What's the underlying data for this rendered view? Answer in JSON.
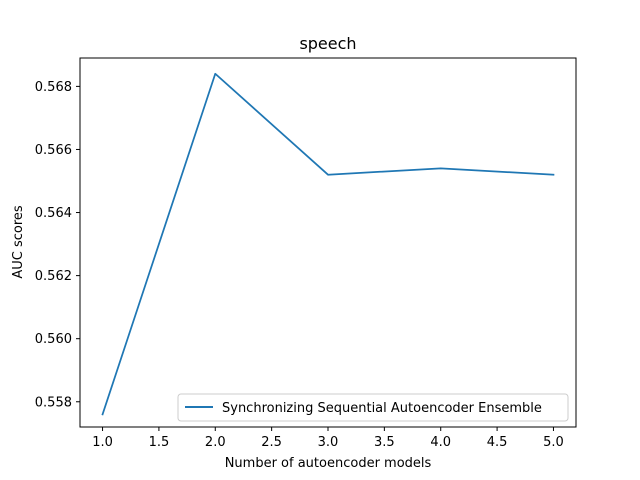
{
  "chart_data": {
    "type": "line",
    "title": "speech",
    "xlabel": "Number of autoencoder models",
    "ylabel": "AUC scores",
    "xlim": [
      0.8,
      5.2
    ],
    "ylim": [
      0.5572,
      0.5689
    ],
    "x_ticks": [
      1.0,
      1.5,
      2.0,
      2.5,
      3.0,
      3.5,
      4.0,
      4.5,
      5.0
    ],
    "x_tick_labels": [
      "1.0",
      "1.5",
      "2.0",
      "2.5",
      "3.0",
      "3.5",
      "4.0",
      "4.5",
      "5.0"
    ],
    "y_ticks": [
      0.558,
      0.56,
      0.562,
      0.564,
      0.566,
      0.568
    ],
    "y_tick_labels": [
      "0.558",
      "0.560",
      "0.562",
      "0.564",
      "0.566",
      "0.568"
    ],
    "grid": false,
    "legend_position": "lower-right",
    "series": [
      {
        "name": "Synchronizing Sequential Autoencoder Ensemble",
        "color": "#1f77b4",
        "x": [
          1,
          2,
          3,
          4,
          5
        ],
        "y": [
          0.5576,
          0.5684,
          0.5652,
          0.5654,
          0.5652
        ]
      }
    ]
  }
}
